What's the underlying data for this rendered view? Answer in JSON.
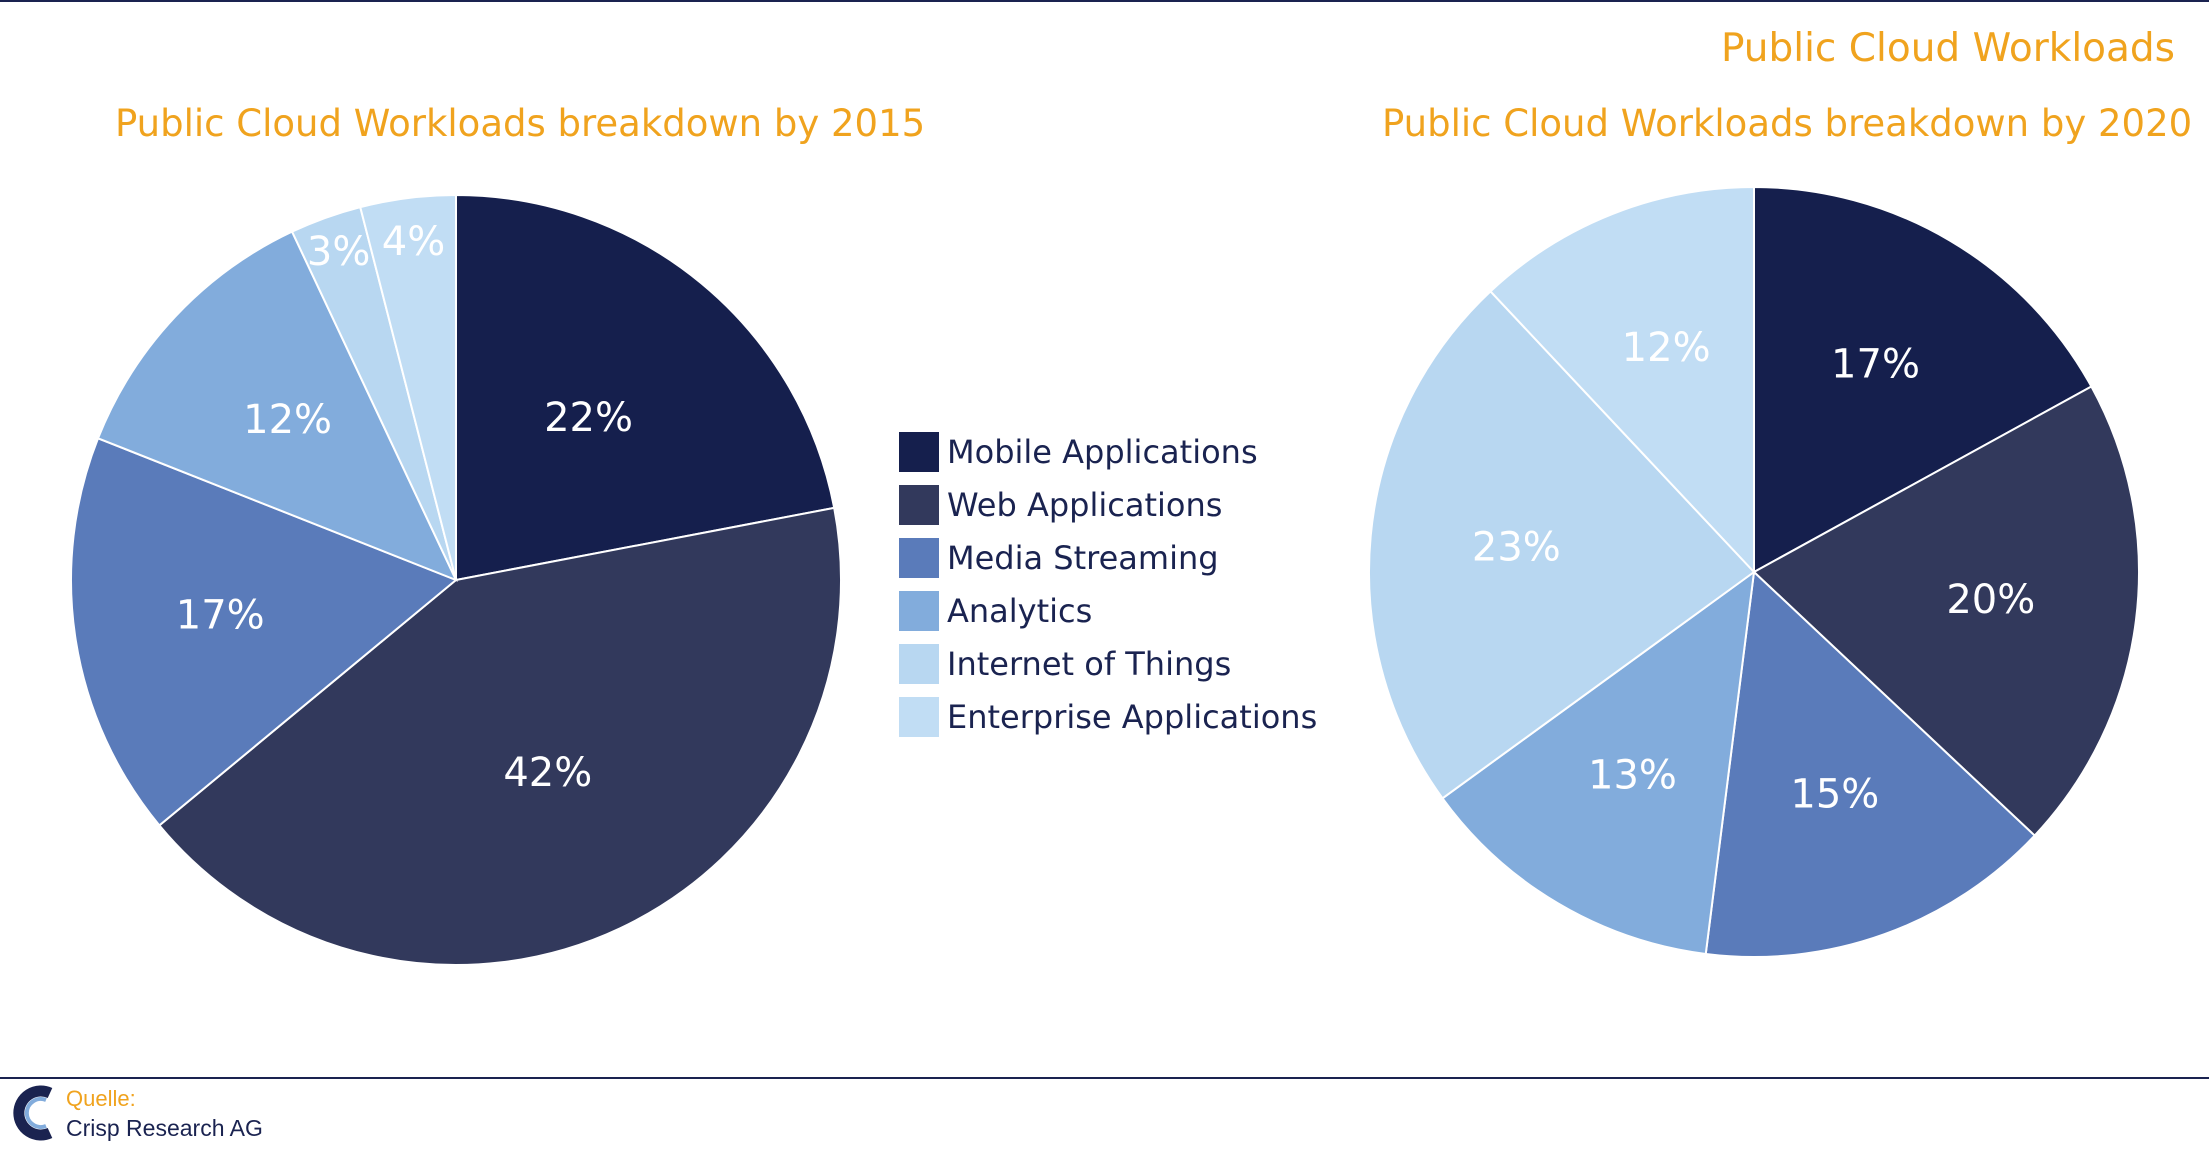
{
  "page": {
    "title": "Public Cloud Workloads",
    "source_label": "Quelle:",
    "source_name": "Crisp Research AG"
  },
  "colors": {
    "accent": "#f0a31e",
    "rule": "#1a2350"
  },
  "legend": [
    {
      "label": "Mobile Applications",
      "color": "#151f4d"
    },
    {
      "label": "Web Applications",
      "color": "#32395c"
    },
    {
      "label": "Media Streaming",
      "color": "#5a7bba"
    },
    {
      "label": "Analytics",
      "color": "#82acdc"
    },
    {
      "label": "Internet of Things",
      "color": "#b8d7f1"
    },
    {
      "label": "Enterprise Applications",
      "color": "#c1ddf4"
    }
  ],
  "chart_data": [
    {
      "type": "pie",
      "title": "Public Cloud Workloads breakdown by 2015",
      "categories": [
        "Mobile Applications",
        "Web Applications",
        "Media Streaming",
        "Analytics",
        "Internet of Things",
        "Enterprise Applications"
      ],
      "values": [
        22,
        42,
        17,
        12,
        3,
        4
      ],
      "labels": [
        "22%",
        "42%",
        "17%",
        "12%",
        "3%",
        "4%"
      ],
      "colors": [
        "#151f4d",
        "#32395c",
        "#5a7bba",
        "#82acdc",
        "#b8d7f1",
        "#c1ddf4"
      ],
      "start": "12 o'clock",
      "direction": "clockwise"
    },
    {
      "type": "pie",
      "title": "Public Cloud Workloads breakdown by 2020",
      "categories": [
        "Mobile Applications",
        "Web Applications",
        "Media Streaming",
        "Analytics",
        "Internet of Things",
        "Enterprise Applications"
      ],
      "values": [
        17,
        20,
        15,
        13,
        23,
        12
      ],
      "labels": [
        "17%",
        "20%",
        "15%",
        "13%",
        "23%",
        "12%"
      ],
      "colors": [
        "#151f4d",
        "#32395c",
        "#5a7bba",
        "#82acdc",
        "#b8d7f1",
        "#c1ddf4"
      ],
      "start": "12 o'clock",
      "direction": "clockwise"
    }
  ]
}
